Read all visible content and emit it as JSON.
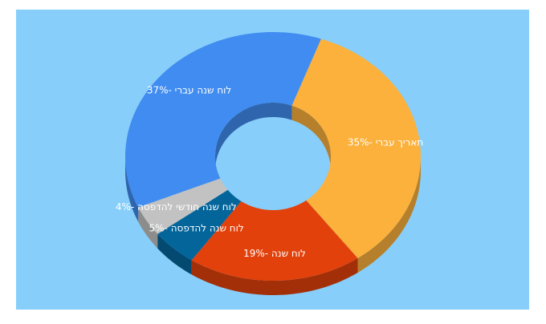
{
  "chart_data": {
    "type": "pie",
    "donut": true,
    "values": [
      35,
      19,
      5,
      4,
      37
    ],
    "value_labels": [
      "תאריך עברי -35%",
      "לוח שנה -19%",
      "לוח שנה להדפסה -5%",
      "לוח שנה חודשי להדפסה -4%",
      "לוח שנה עברי -37%"
    ],
    "colors": [
      "#fbb13c",
      "#e2410b",
      "#04659b",
      "#c2c2c2",
      "#418cf0"
    ]
  }
}
